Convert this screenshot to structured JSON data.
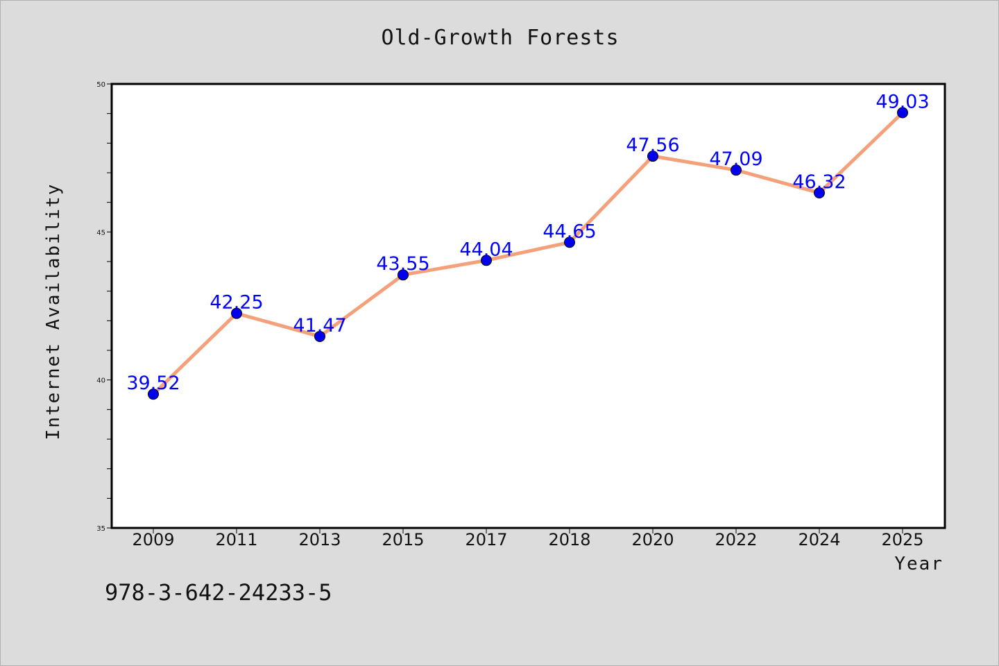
{
  "chart_data": {
    "type": "line",
    "title": "Old-Growth Forests",
    "xlabel": "Year",
    "ylabel": "Internet Availability",
    "categories": [
      "2009",
      "2011",
      "2013",
      "2015",
      "2017",
      "2018",
      "2020",
      "2022",
      "2024",
      "2025"
    ],
    "series": [
      {
        "values": [
          39.52,
          42.25,
          41.47,
          43.55,
          44.04,
          44.65,
          47.56,
          47.09,
          46.32,
          49.03
        ],
        "labels": [
          "39.52",
          "42.25",
          "41.47",
          "43.55",
          "44.04",
          "44.65",
          "47.56",
          "47.09",
          "46.32",
          "49.03"
        ],
        "line_color": "#f4a07a",
        "marker_color": "#0000ee",
        "label_color": "#0000ff"
      }
    ],
    "ylim": [
      35,
      50
    ],
    "y_major_ticks": [
      35,
      40,
      45,
      50
    ],
    "y_minor_step": 1,
    "grid": false,
    "legend": "none"
  },
  "footer": {
    "text": "978-3-642-24233-5"
  },
  "colors": {
    "background": "#dcdcdc",
    "plot_background": "#ffffff",
    "axis": "#000000"
  }
}
